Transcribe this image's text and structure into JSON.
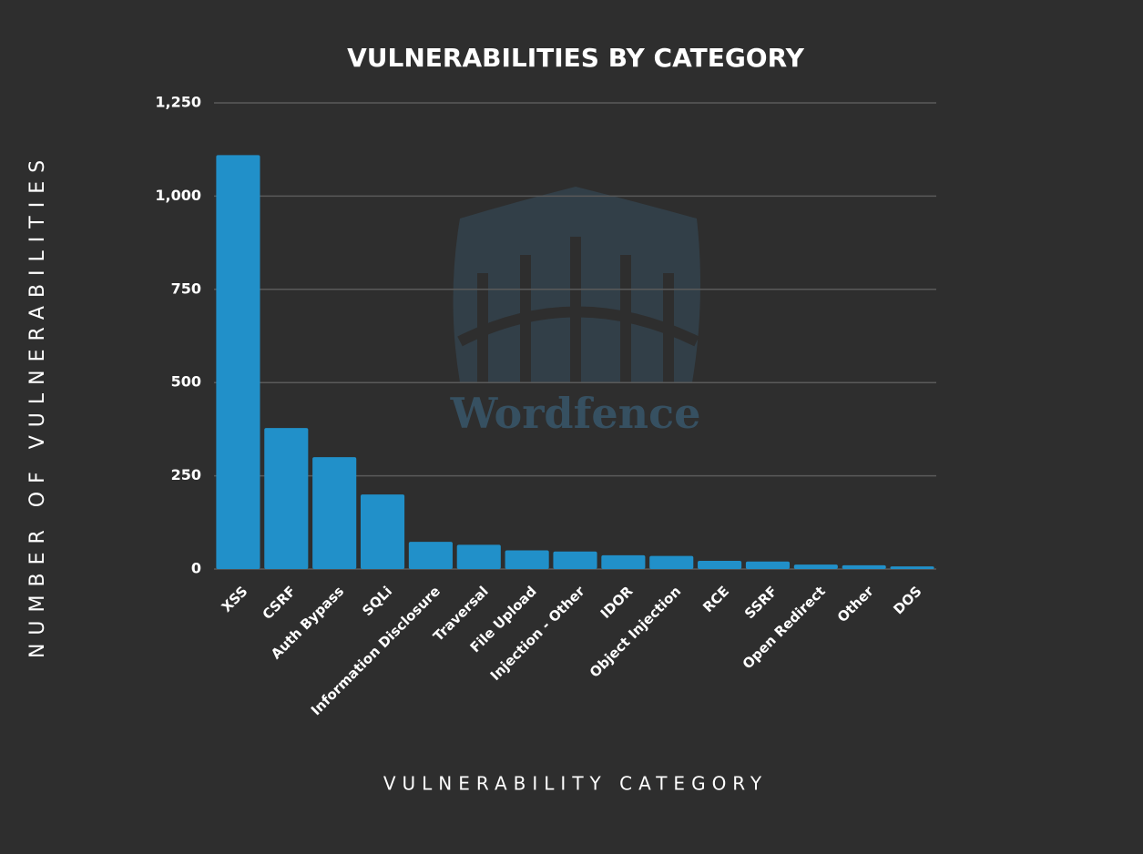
{
  "chart_data": {
    "type": "bar",
    "title": "VULNERABILITIES BY CATEGORY",
    "x_label": "VULNERABILITY CATEGORY",
    "y_label": "NUMBER OF VULNERABILITIES",
    "watermark": "Wordfence",
    "categories": [
      "XSS",
      "CSRF",
      "Auth Bypass",
      "SQLi",
      "Information Disclosure",
      "Traversal",
      "File Upload",
      "Injection - Other",
      "IDOR",
      "Object Injection",
      "RCE",
      "SSRF",
      "Open Redirect",
      "Other",
      "DOS"
    ],
    "values": [
      1110,
      378,
      300,
      200,
      73,
      65,
      50,
      47,
      37,
      35,
      22,
      20,
      12,
      10,
      7
    ],
    "color": "#2190c9",
    "ylim": [
      0,
      1250
    ],
    "yticks": [
      0,
      250,
      500,
      750,
      {
        "value": 1000,
        "label": "1,000"
      },
      {
        "value": 1250,
        "label": "1,250"
      }
    ],
    "grid": true
  }
}
